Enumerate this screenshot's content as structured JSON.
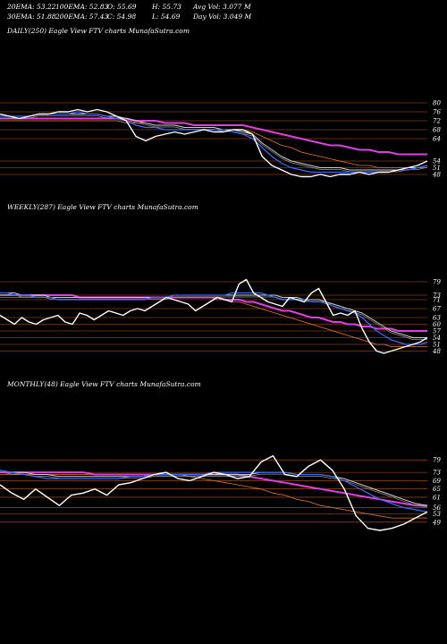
{
  "header": {
    "row1": [
      "20EMA: 53.22",
      "100EMA: 52.83",
      "O: 55.69",
      "H: 55.73",
      "Avg Vol: 3.077 M"
    ],
    "row2": [
      "30EMA: 51.88",
      "200EMA: 57.43",
      "C: 54.98",
      "L: 54.69",
      "Day Vol: 3.049 M"
    ]
  },
  "colors": {
    "background": "#000000",
    "price": "#ffffff",
    "ema_short": "#3a6bff",
    "ema_mid": "#cfcfcf",
    "ema_long": "#e03fe0",
    "ema_orange": "#e07a2a",
    "guide_line": "#c25a18"
  },
  "chart_data": [
    {
      "type": "line",
      "title": "DAILY(250) Eagle   View  FTV charts MunafaSutra.com",
      "yticks": [
        "80",
        "76",
        "72",
        "68",
        "64",
        "54",
        "51",
        "48"
      ],
      "ylim": [
        44,
        86
      ],
      "series": [
        {
          "role": "price",
          "values": [
            75,
            74,
            73,
            74,
            75,
            75,
            76,
            76,
            77,
            76,
            77,
            76,
            74,
            72,
            65,
            63,
            65,
            66,
            67,
            66,
            67,
            68,
            67,
            67,
            68,
            68,
            66,
            56,
            52,
            50,
            48,
            47,
            47,
            48,
            47,
            48,
            48,
            49,
            48,
            49,
            49,
            50,
            51,
            52,
            54
          ]
        },
        {
          "role": "ema_short",
          "values": [
            74,
            74,
            74,
            74,
            75,
            75,
            75,
            75,
            76,
            75,
            75,
            74,
            73,
            72,
            70,
            69,
            69,
            68,
            68,
            68,
            68,
            68,
            68,
            68,
            67,
            66,
            64,
            60,
            56,
            53,
            51,
            50,
            49,
            49,
            49,
            49,
            49,
            49,
            49,
            49,
            49,
            50,
            50,
            51,
            52
          ]
        },
        {
          "role": "ema_mid",
          "values": [
            74,
            74,
            74,
            74,
            75,
            75,
            75,
            75,
            75,
            75,
            75,
            74,
            74,
            73,
            72,
            71,
            70,
            70,
            70,
            69,
            69,
            69,
            69,
            68,
            68,
            67,
            66,
            62,
            59,
            56,
            54,
            53,
            52,
            51,
            51,
            51,
            50,
            50,
            50,
            50,
            50,
            50,
            51,
            51,
            52
          ]
        },
        {
          "role": "ema_long",
          "values": [
            73,
            73,
            73,
            73,
            73,
            73,
            73,
            73,
            73,
            73,
            73,
            73,
            73,
            73,
            72,
            72,
            72,
            71,
            71,
            71,
            70,
            70,
            70,
            70,
            70,
            70,
            69,
            68,
            67,
            66,
            65,
            64,
            63,
            62,
            61,
            61,
            60,
            59,
            59,
            58,
            58,
            57,
            57,
            57,
            57
          ]
        },
        {
          "role": "ema_orange",
          "values": [
            72,
            72,
            72,
            72,
            72,
            72,
            72,
            72,
            72,
            72,
            72,
            72,
            72,
            71,
            71,
            71,
            70,
            70,
            70,
            69,
            69,
            69,
            69,
            68,
            68,
            68,
            67,
            65,
            63,
            61,
            60,
            58,
            57,
            56,
            55,
            54,
            53,
            52,
            52,
            51,
            51,
            51,
            51,
            51,
            51
          ]
        }
      ]
    },
    {
      "type": "line",
      "title": "WEEKLY(287) Eagle   View  FTV charts MunafaSutra.com",
      "yticks": [
        "79",
        "73",
        "71",
        "67",
        "63",
        "60",
        "57",
        "54",
        "51",
        "48"
      ],
      "ylim": [
        45,
        85
      ],
      "series": [
        {
          "role": "price",
          "values": [
            64,
            62,
            60,
            63,
            61,
            60,
            62,
            63,
            64,
            61,
            60,
            65,
            64,
            62,
            64,
            66,
            65,
            64,
            66,
            67,
            66,
            68,
            70,
            72,
            71,
            70,
            69,
            66,
            68,
            70,
            72,
            71,
            70,
            78,
            80,
            74,
            72,
            70,
            69,
            68,
            72,
            71,
            70,
            74,
            76,
            70,
            64,
            65,
            64,
            66,
            58,
            52,
            48,
            47,
            48,
            49,
            50,
            51,
            52,
            54
          ]
        },
        {
          "role": "ema_short",
          "values": [
            74,
            74,
            73,
            73,
            73,
            72,
            72,
            72,
            71,
            71,
            71,
            71,
            71,
            71,
            71,
            71,
            71,
            71,
            71,
            71,
            71,
            72,
            72,
            72,
            73,
            73,
            73,
            73,
            73,
            73,
            73,
            73,
            74,
            74,
            74,
            74,
            74,
            73,
            72,
            71,
            71,
            71,
            71,
            70,
            70,
            70,
            68,
            67,
            66,
            65,
            63,
            60,
            57,
            55,
            53,
            52,
            51,
            51,
            51,
            52
          ]
        },
        {
          "role": "ema_mid",
          "values": [
            74,
            74,
            74,
            73,
            73,
            73,
            73,
            72,
            72,
            72,
            72,
            72,
            72,
            72,
            72,
            72,
            72,
            72,
            72,
            72,
            72,
            72,
            72,
            72,
            73,
            73,
            73,
            73,
            73,
            73,
            73,
            73,
            73,
            73,
            73,
            73,
            73,
            73,
            73,
            72,
            72,
            72,
            71,
            71,
            71,
            70,
            69,
            68,
            67,
            66,
            65,
            63,
            61,
            59,
            57,
            56,
            55,
            54,
            54,
            54
          ]
        },
        {
          "role": "ema_long",
          "values": [
            73,
            73,
            73,
            73,
            73,
            73,
            73,
            73,
            73,
            73,
            73,
            72,
            72,
            72,
            72,
            72,
            72,
            72,
            72,
            72,
            72,
            72,
            72,
            72,
            72,
            72,
            72,
            72,
            72,
            72,
            72,
            71,
            71,
            71,
            70,
            70,
            69,
            68,
            67,
            66,
            66,
            65,
            64,
            63,
            63,
            62,
            61,
            61,
            60,
            60,
            59,
            59,
            58,
            58,
            58,
            57,
            57,
            57,
            57,
            57
          ]
        },
        {
          "role": "ema_orange",
          "values": [
            72,
            72,
            72,
            72,
            72,
            72,
            72,
            72,
            72,
            72,
            72,
            72,
            72,
            72,
            72,
            72,
            72,
            72,
            72,
            72,
            72,
            72,
            72,
            72,
            72,
            72,
            72,
            72,
            72,
            72,
            71,
            71,
            70,
            70,
            69,
            68,
            67,
            66,
            65,
            64,
            63,
            62,
            61,
            60,
            59,
            58,
            57,
            56,
            55,
            54,
            53,
            52,
            51,
            51,
            50,
            50,
            50,
            50,
            50,
            50
          ]
        }
      ]
    },
    {
      "type": "line",
      "title": "MONTHLY(48) Eagle   View  FTV charts MunafaSutra.com",
      "yticks": [
        "79",
        "73",
        "69",
        "65",
        "61",
        "56",
        "53",
        "49"
      ],
      "ylim": [
        42,
        86
      ],
      "series": [
        {
          "role": "price",
          "values": [
            67,
            63,
            60,
            65,
            61,
            57,
            62,
            63,
            65,
            62,
            67,
            68,
            70,
            72,
            73,
            70,
            69,
            71,
            73,
            72,
            70,
            71,
            78,
            81,
            72,
            71,
            76,
            79,
            74,
            65,
            52,
            46,
            45,
            46,
            48,
            51,
            54
          ]
        },
        {
          "role": "ema_short",
          "values": [
            74,
            73,
            72,
            71,
            70,
            70,
            70,
            70,
            70,
            70,
            70,
            71,
            71,
            72,
            72,
            72,
            72,
            72,
            73,
            73,
            73,
            73,
            73,
            73,
            73,
            72,
            72,
            72,
            71,
            69,
            66,
            63,
            60,
            58,
            56,
            55,
            54
          ]
        },
        {
          "role": "ema_mid",
          "values": [
            74,
            73,
            73,
            72,
            72,
            71,
            71,
            71,
            71,
            71,
            71,
            71,
            71,
            72,
            72,
            72,
            72,
            72,
            72,
            72,
            72,
            72,
            73,
            73,
            73,
            72,
            72,
            72,
            71,
            70,
            68,
            66,
            64,
            62,
            60,
            58,
            57
          ]
        },
        {
          "role": "ema_long",
          "values": [
            73,
            73,
            73,
            73,
            73,
            73,
            73,
            73,
            72,
            72,
            72,
            72,
            72,
            72,
            72,
            72,
            72,
            72,
            72,
            72,
            72,
            71,
            70,
            69,
            68,
            67,
            66,
            65,
            64,
            63,
            62,
            61,
            60,
            59,
            58,
            57,
            57
          ]
        },
        {
          "role": "ema_orange",
          "values": [
            72,
            72,
            72,
            72,
            72,
            72,
            72,
            72,
            72,
            72,
            72,
            72,
            72,
            72,
            72,
            72,
            71,
            70,
            69,
            68,
            67,
            66,
            65,
            63,
            62,
            60,
            59,
            57,
            56,
            55,
            54,
            53,
            52,
            51,
            51,
            51,
            51
          ]
        }
      ]
    }
  ]
}
